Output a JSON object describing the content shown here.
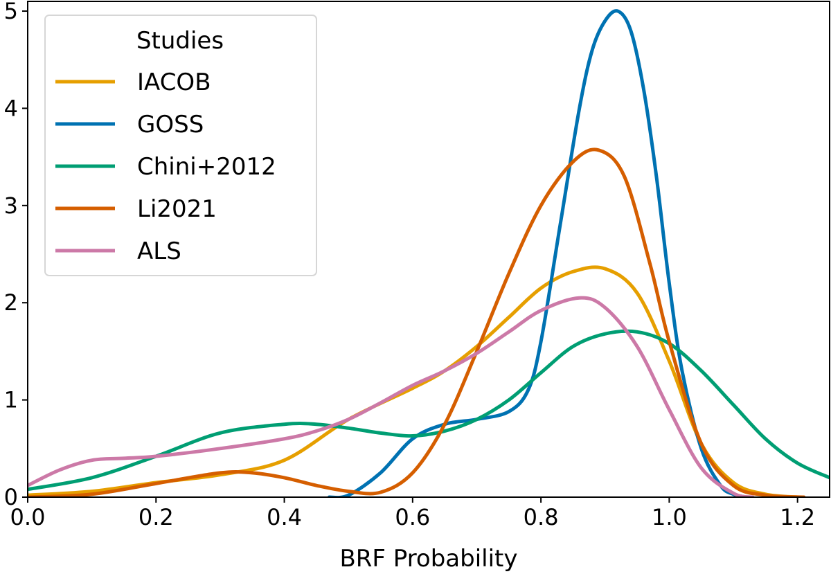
{
  "chart_data": {
    "type": "line",
    "xlabel": "BRF Probability",
    "ylabel": "",
    "xlim": [
      0.0,
      1.25
    ],
    "ylim": [
      0,
      5.1
    ],
    "xticks": [
      "0.0",
      "0.2",
      "0.4",
      "0.6",
      "0.8",
      "1.0",
      "1.2"
    ],
    "yticks": [
      "0",
      "1",
      "2",
      "3",
      "4",
      "5"
    ],
    "legend": {
      "title": "Studies",
      "position": "top-left"
    },
    "series": [
      {
        "name": "IACOB",
        "color": "#e69f00",
        "x": [
          0.0,
          0.1,
          0.2,
          0.3,
          0.4,
          0.5,
          0.6,
          0.65,
          0.7,
          0.75,
          0.8,
          0.85,
          0.9,
          0.95,
          1.0,
          1.05,
          1.1,
          1.15,
          1.2
        ],
        "y": [
          0.02,
          0.06,
          0.15,
          0.23,
          0.38,
          0.8,
          1.12,
          1.3,
          1.55,
          1.85,
          2.15,
          2.32,
          2.35,
          2.1,
          1.4,
          0.55,
          0.15,
          0.03,
          0.0
        ]
      },
      {
        "name": "GOSS",
        "color": "#0072b2",
        "x": [
          0.47,
          0.5,
          0.55,
          0.6,
          0.65,
          0.7,
          0.75,
          0.78,
          0.8,
          0.83,
          0.86,
          0.88,
          0.9,
          0.92,
          0.94,
          0.96,
          0.98,
          1.0,
          1.02,
          1.05,
          1.08,
          1.1,
          1.12
        ],
        "y": [
          0.0,
          0.02,
          0.25,
          0.6,
          0.75,
          0.8,
          0.88,
          1.1,
          1.6,
          2.8,
          4.0,
          4.6,
          4.9,
          5.0,
          4.8,
          4.2,
          3.3,
          2.2,
          1.3,
          0.5,
          0.12,
          0.03,
          0.0
        ]
      },
      {
        "name": "Chini+2012",
        "color": "#009e73",
        "x": [
          0.0,
          0.1,
          0.2,
          0.3,
          0.4,
          0.45,
          0.5,
          0.55,
          0.6,
          0.65,
          0.7,
          0.75,
          0.8,
          0.85,
          0.9,
          0.95,
          1.0,
          1.05,
          1.1,
          1.15,
          1.2,
          1.25
        ],
        "y": [
          0.08,
          0.2,
          0.42,
          0.66,
          0.75,
          0.75,
          0.71,
          0.66,
          0.63,
          0.68,
          0.8,
          1.0,
          1.28,
          1.55,
          1.68,
          1.7,
          1.58,
          1.3,
          0.95,
          0.6,
          0.35,
          0.2
        ]
      },
      {
        "name": "Li2021",
        "color": "#d55e00",
        "x": [
          0.0,
          0.1,
          0.2,
          0.3,
          0.35,
          0.4,
          0.45,
          0.5,
          0.55,
          0.6,
          0.65,
          0.7,
          0.75,
          0.8,
          0.85,
          0.89,
          0.93,
          0.97,
          1.0,
          1.05,
          1.1,
          1.15,
          1.21
        ],
        "y": [
          0.0,
          0.03,
          0.14,
          0.25,
          0.25,
          0.2,
          0.12,
          0.06,
          0.05,
          0.25,
          0.75,
          1.5,
          2.3,
          3.0,
          3.45,
          3.57,
          3.3,
          2.4,
          1.6,
          0.55,
          0.12,
          0.02,
          0.0
        ]
      },
      {
        "name": "ALS",
        "color": "#cc79a7",
        "x": [
          0.0,
          0.05,
          0.1,
          0.15,
          0.2,
          0.3,
          0.4,
          0.45,
          0.5,
          0.55,
          0.6,
          0.65,
          0.7,
          0.75,
          0.8,
          0.86,
          0.9,
          0.95,
          1.0,
          1.05,
          1.1,
          1.13
        ],
        "y": [
          0.12,
          0.28,
          0.38,
          0.4,
          0.42,
          0.5,
          0.6,
          0.68,
          0.8,
          0.97,
          1.15,
          1.3,
          1.48,
          1.7,
          1.92,
          2.05,
          1.95,
          1.55,
          0.9,
          0.3,
          0.04,
          0.0
        ]
      }
    ]
  }
}
